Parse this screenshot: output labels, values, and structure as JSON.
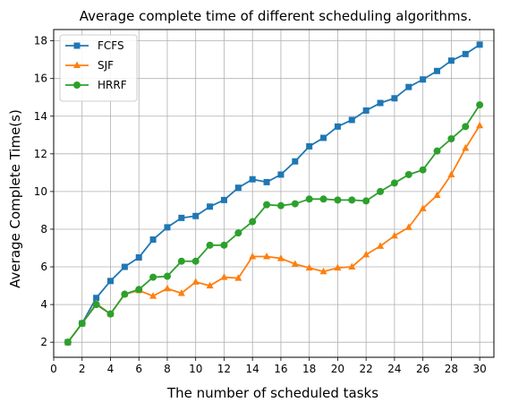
{
  "chart_data": {
    "type": "line",
    "title": "Average complete time of different scheduling algorithms.",
    "xlabel": "The number of scheduled tasks",
    "ylabel": "Average Complete Time(s)",
    "xlim": [
      0,
      31
    ],
    "ylim": [
      1.2,
      18.6
    ],
    "xticks": [
      0,
      2,
      4,
      6,
      8,
      10,
      12,
      14,
      16,
      18,
      20,
      22,
      24,
      26,
      28,
      30
    ],
    "yticks": [
      2,
      4,
      6,
      8,
      10,
      12,
      14,
      16,
      18
    ],
    "grid": true,
    "legend_position": "upper-left",
    "x": [
      1,
      2,
      3,
      4,
      5,
      6,
      7,
      8,
      9,
      10,
      11,
      12,
      13,
      14,
      15,
      16,
      17,
      18,
      19,
      20,
      21,
      22,
      23,
      24,
      25,
      26,
      27,
      28,
      29,
      30
    ],
    "series": [
      {
        "name": "FCFS",
        "color": "#1f77b4",
        "marker": "square",
        "values": [
          2.0,
          3.0,
          4.35,
          5.25,
          6.0,
          6.5,
          7.45,
          8.1,
          8.6,
          8.7,
          9.2,
          9.55,
          10.2,
          10.65,
          10.5,
          10.9,
          11.6,
          12.4,
          12.85,
          13.45,
          13.8,
          14.3,
          14.7,
          14.95,
          15.55,
          15.95,
          16.4,
          16.95,
          17.3,
          17.8
        ]
      },
      {
        "name": "SJF",
        "color": "#ff7f0e",
        "marker": "triangle",
        "values": [
          2.0,
          3.0,
          4.05,
          3.5,
          4.55,
          4.75,
          4.45,
          4.85,
          4.6,
          5.2,
          5.0,
          5.45,
          5.4,
          6.55,
          6.55,
          6.45,
          6.15,
          5.95,
          5.75,
          5.95,
          6.0,
          6.65,
          7.1,
          7.65,
          8.1,
          9.1,
          9.8,
          10.9,
          12.3,
          13.5
        ]
      },
      {
        "name": "HRRF",
        "color": "#2ca02c",
        "marker": "circle",
        "values": [
          2.0,
          3.0,
          4.0,
          3.5,
          4.55,
          4.8,
          5.45,
          5.5,
          6.3,
          6.3,
          7.15,
          7.15,
          7.8,
          8.4,
          9.3,
          9.25,
          9.35,
          9.6,
          9.6,
          9.55,
          9.55,
          9.5,
          10.0,
          10.45,
          10.9,
          11.15,
          12.15,
          12.8,
          13.45,
          14.6
        ]
      }
    ]
  }
}
